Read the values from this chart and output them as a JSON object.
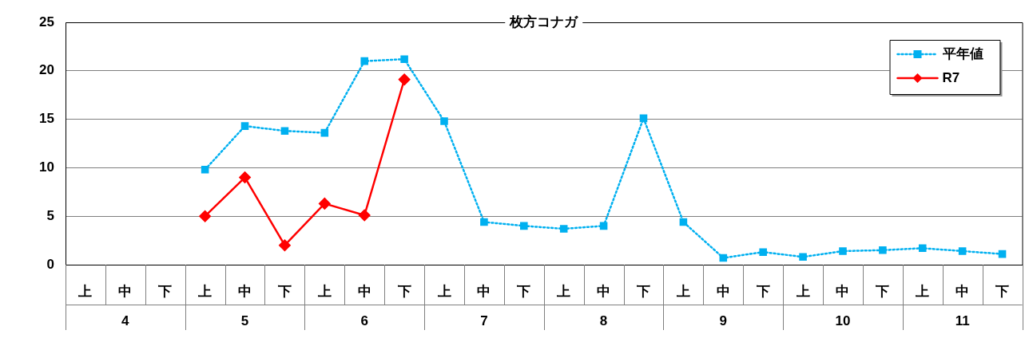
{
  "chart_data": {
    "type": "line",
    "title": "枚方コナガ",
    "categories": [
      "上",
      "中",
      "下",
      "上",
      "中",
      "下",
      "上",
      "中",
      "下",
      "上",
      "中",
      "下",
      "上",
      "中",
      "下",
      "上",
      "中",
      "下",
      "上",
      "中",
      "下",
      "上",
      "中",
      "下"
    ],
    "annotations": [
      "4",
      "5",
      "6",
      "7",
      "8",
      "9",
      "10",
      "11"
    ],
    "series": [
      {
        "name": "平年値",
        "color": "#00b0f0",
        "marker": "square",
        "line_style": "dotted",
        "values": [
          null,
          null,
          null,
          9.8,
          14.3,
          13.8,
          13.6,
          21.0,
          21.2,
          14.8,
          4.4,
          4.0,
          3.7,
          4.0,
          15.1,
          4.4,
          0.7,
          1.3,
          0.8,
          1.4,
          1.5,
          1.7,
          1.4,
          1.1
        ]
      },
      {
        "name": "R7",
        "color": "#ff0000",
        "marker": "diamond",
        "line_style": "solid",
        "values": [
          null,
          null,
          null,
          5.0,
          9.0,
          2.0,
          6.3,
          5.1,
          19.1,
          null,
          null,
          null,
          null,
          null,
          null,
          null,
          null,
          null,
          null,
          null,
          null,
          null,
          null,
          null
        ]
      }
    ],
    "ylim": [
      0,
      25
    ],
    "yticks": [
      0,
      5,
      10,
      15,
      20,
      25
    ],
    "grid": "y",
    "legend": "top right"
  }
}
